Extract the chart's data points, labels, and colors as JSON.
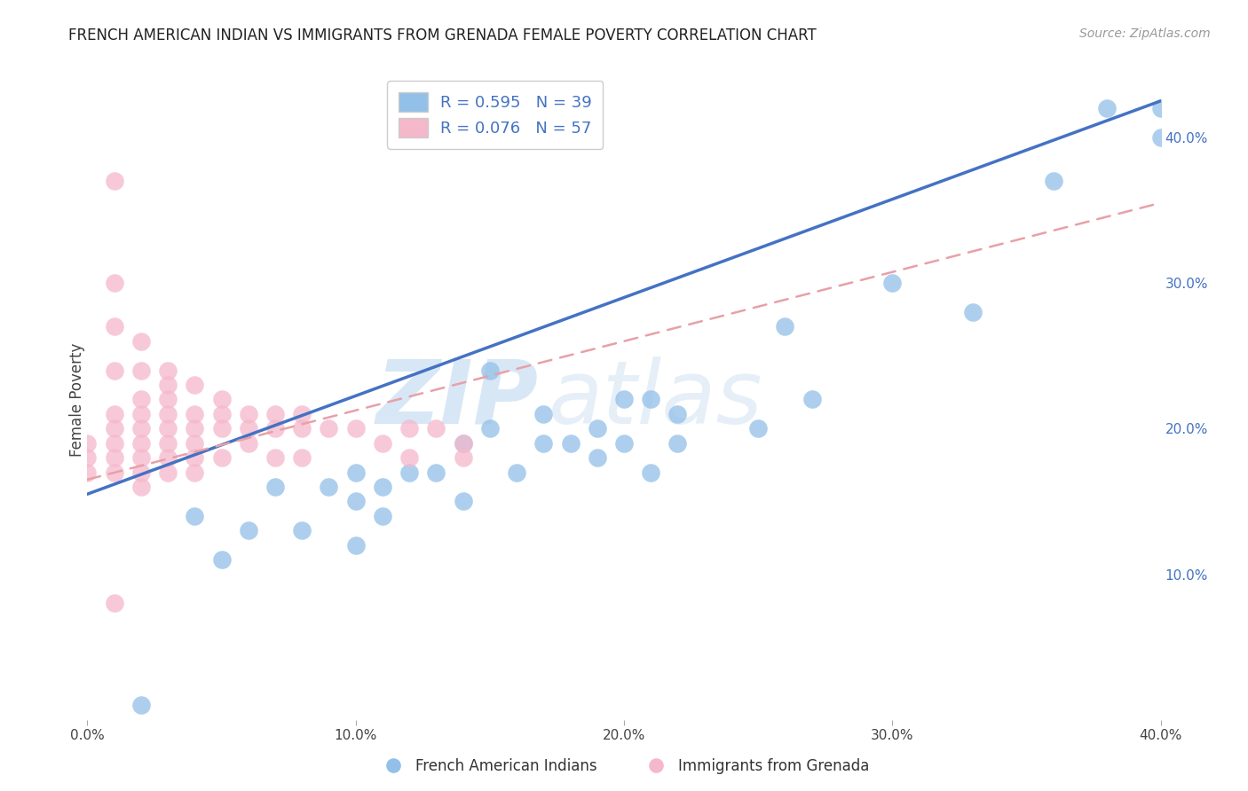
{
  "title": "FRENCH AMERICAN INDIAN VS IMMIGRANTS FROM GRENADA FEMALE POVERTY CORRELATION CHART",
  "source": "Source: ZipAtlas.com",
  "ylabel": "Female Poverty",
  "xlim": [
    0.0,
    0.4
  ],
  "ylim": [
    0.0,
    0.44
  ],
  "x_ticks": [
    0.0,
    0.1,
    0.2,
    0.3,
    0.4
  ],
  "x_tick_labels": [
    "0.0%",
    "10.0%",
    "20.0%",
    "30.0%",
    "40.0%"
  ],
  "y_ticks": [
    0.1,
    0.2,
    0.3,
    0.4
  ],
  "y_tick_labels_right": [
    "10.0%",
    "20.0%",
    "30.0%",
    "40.0%"
  ],
  "watermark_zip": "ZIP",
  "watermark_atlas": "atlas",
  "legend_R1": "R = 0.595",
  "legend_N1": "N = 39",
  "legend_R2": "R = 0.076",
  "legend_N2": "N = 57",
  "color_blue": "#92C0E8",
  "color_pink": "#F5B8CB",
  "line_blue": "#4472C4",
  "line_pink_dashed": "#E8A0A8",
  "label_blue": "French American Indians",
  "label_pink": "Immigrants from Grenada",
  "background_color": "#ffffff",
  "grid_color": "#d0d0d0",
  "scatter_blue": {
    "x": [
      0.02,
      0.04,
      0.05,
      0.06,
      0.07,
      0.08,
      0.09,
      0.1,
      0.1,
      0.1,
      0.11,
      0.11,
      0.12,
      0.13,
      0.14,
      0.14,
      0.15,
      0.16,
      0.17,
      0.17,
      0.18,
      0.19,
      0.19,
      0.2,
      0.2,
      0.21,
      0.22,
      0.22,
      0.25,
      0.26,
      0.27,
      0.3,
      0.33,
      0.36,
      0.38,
      0.4,
      0.4,
      0.21,
      0.15
    ],
    "y": [
      0.01,
      0.14,
      0.11,
      0.13,
      0.16,
      0.13,
      0.16,
      0.17,
      0.15,
      0.12,
      0.14,
      0.16,
      0.17,
      0.17,
      0.15,
      0.19,
      0.2,
      0.17,
      0.21,
      0.19,
      0.19,
      0.18,
      0.2,
      0.22,
      0.19,
      0.22,
      0.21,
      0.19,
      0.2,
      0.27,
      0.22,
      0.3,
      0.28,
      0.37,
      0.42,
      0.42,
      0.4,
      0.17,
      0.24
    ]
  },
  "scatter_pink": {
    "x": [
      0.0,
      0.0,
      0.0,
      0.01,
      0.01,
      0.01,
      0.01,
      0.01,
      0.01,
      0.01,
      0.01,
      0.01,
      0.02,
      0.02,
      0.02,
      0.02,
      0.02,
      0.02,
      0.02,
      0.02,
      0.02,
      0.03,
      0.03,
      0.03,
      0.03,
      0.03,
      0.03,
      0.03,
      0.03,
      0.04,
      0.04,
      0.04,
      0.04,
      0.04,
      0.04,
      0.05,
      0.05,
      0.05,
      0.05,
      0.06,
      0.06,
      0.06,
      0.07,
      0.07,
      0.07,
      0.08,
      0.08,
      0.08,
      0.09,
      0.1,
      0.11,
      0.12,
      0.12,
      0.13,
      0.14,
      0.14,
      0.01
    ],
    "y": [
      0.19,
      0.18,
      0.17,
      0.37,
      0.3,
      0.27,
      0.24,
      0.21,
      0.2,
      0.19,
      0.18,
      0.17,
      0.26,
      0.24,
      0.22,
      0.21,
      0.2,
      0.19,
      0.18,
      0.17,
      0.16,
      0.24,
      0.23,
      0.22,
      0.21,
      0.2,
      0.19,
      0.18,
      0.17,
      0.23,
      0.21,
      0.2,
      0.19,
      0.18,
      0.17,
      0.22,
      0.21,
      0.2,
      0.18,
      0.21,
      0.2,
      0.19,
      0.21,
      0.2,
      0.18,
      0.21,
      0.2,
      0.18,
      0.2,
      0.2,
      0.19,
      0.2,
      0.18,
      0.2,
      0.19,
      0.18,
      0.08
    ]
  },
  "blue_line_x": [
    0.0,
    0.4
  ],
  "blue_line_y": [
    0.155,
    0.425
  ],
  "pink_line_x": [
    0.0,
    0.4
  ],
  "pink_line_y": [
    0.165,
    0.355
  ]
}
